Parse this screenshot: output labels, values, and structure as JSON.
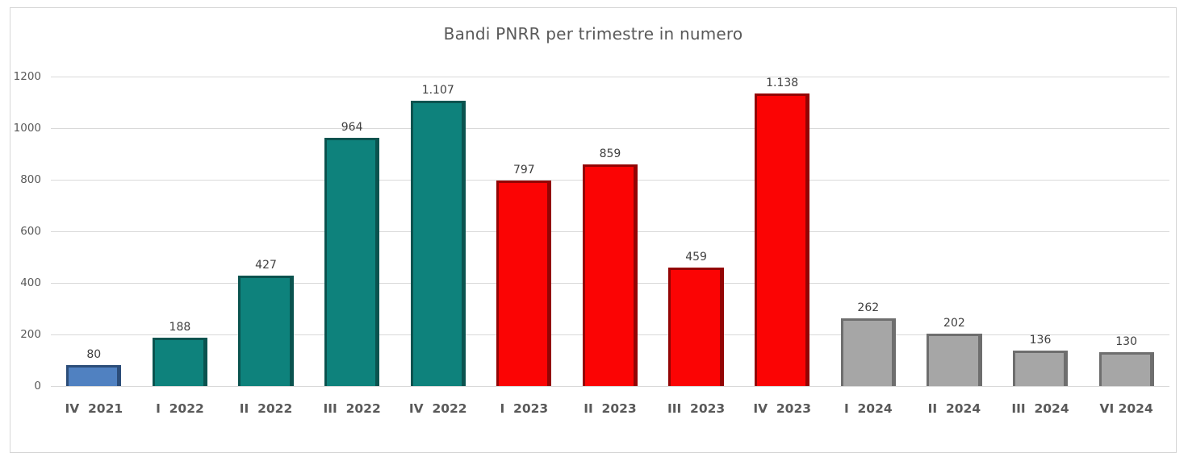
{
  "chart_data": {
    "type": "bar",
    "title": "Bandi PNRR per trimestre in numero",
    "categories": [
      "IV  2021",
      "I  2022",
      "II  2022",
      "III  2022",
      "IV  2022",
      "I  2023",
      "II  2023",
      "III  2023",
      "IV  2023",
      "I  2024",
      "II  2024",
      "III  2024",
      "VI 2024"
    ],
    "values": [
      80,
      188,
      427,
      964,
      1107,
      797,
      859,
      459,
      1138,
      262,
      202,
      136,
      130
    ],
    "value_labels": [
      "80",
      "188",
      "427",
      "964",
      "1.107",
      "797",
      "859",
      "459",
      "1.138",
      "262",
      "202",
      "136",
      "130"
    ],
    "bar_fill_colors": [
      "#5081c1",
      "#0e827c",
      "#0e827c",
      "#0e827c",
      "#0e827c",
      "#fb0404",
      "#fb0404",
      "#fb0404",
      "#fb0404",
      "#a6a6a6",
      "#a6a6a6",
      "#a6a6a6",
      "#a6a6a6"
    ],
    "bar_border_colors": [
      "#2c4d79",
      "#0a534f",
      "#0a534f",
      "#0a534f",
      "#0a534f",
      "#930404",
      "#930404",
      "#930404",
      "#930404",
      "#6e6e6e",
      "#6e6e6e",
      "#6e6e6e",
      "#6e6e6e"
    ],
    "xlabel": "",
    "ylabel": "",
    "ylim": [
      0,
      1200
    ],
    "yticks": [
      0,
      200,
      400,
      600,
      800,
      1000,
      1200
    ],
    "grid": true,
    "legend": "none",
    "style": {
      "gridline_color": "#d9d9d9",
      "axis_text_color": "#595959",
      "value_label_color": "#3f3f3f",
      "title_color": "#595959",
      "frame_border_color": "#d6d6d6"
    }
  }
}
